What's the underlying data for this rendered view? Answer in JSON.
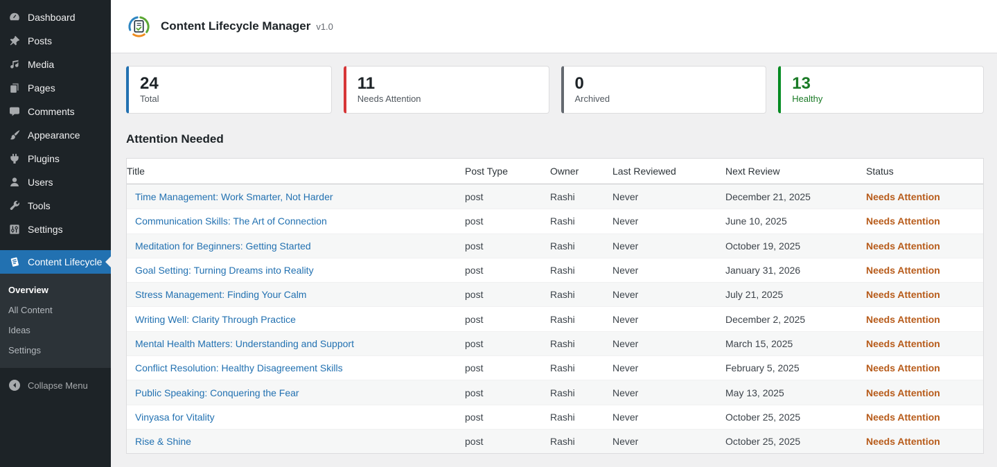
{
  "sidebar": {
    "items": [
      {
        "label": "Dashboard",
        "icon": "dashboard-icon"
      },
      {
        "label": "Posts",
        "icon": "pushpin-icon"
      },
      {
        "label": "Media",
        "icon": "media-icon"
      },
      {
        "label": "Pages",
        "icon": "pages-icon"
      },
      {
        "label": "Comments",
        "icon": "comments-icon"
      },
      {
        "label": "Appearance",
        "icon": "appearance-icon"
      },
      {
        "label": "Plugins",
        "icon": "plugins-icon"
      },
      {
        "label": "Users",
        "icon": "users-icon"
      },
      {
        "label": "Tools",
        "icon": "tools-icon"
      },
      {
        "label": "Settings",
        "icon": "settings-icon"
      }
    ],
    "active_item": {
      "label": "Content Lifecycle",
      "icon": "clipboard-icon"
    },
    "submenu": [
      {
        "label": "Overview",
        "current": true
      },
      {
        "label": "All Content",
        "current": false
      },
      {
        "label": "Ideas",
        "current": false
      },
      {
        "label": "Settings",
        "current": false
      }
    ],
    "collapse": {
      "label": "Collapse Menu",
      "icon": "collapse-arrow-icon"
    }
  },
  "header": {
    "title": "Content Lifecycle Manager",
    "version": "v1.0",
    "logo_icon": "lifecycle-logo-icon"
  },
  "stats": [
    {
      "value": "24",
      "label": "Total",
      "accent": "#2271b1",
      "value_color": "#1d2327"
    },
    {
      "value": "11",
      "label": "Needs Attention",
      "accent": "#d63638",
      "value_color": "#1d2327"
    },
    {
      "value": "0",
      "label": "Archived",
      "accent": "#646970",
      "value_color": "#1d2327"
    },
    {
      "value": "13",
      "label": "Healthy",
      "accent": "#008a20",
      "value_color": "#1a7a26",
      "label_color": "#1a7a26"
    }
  ],
  "section": {
    "title": "Attention Needed"
  },
  "table": {
    "columns": [
      "Title",
      "Post Type",
      "Owner",
      "Last Reviewed",
      "Next Review",
      "Status"
    ],
    "link_color": "#2271b1",
    "status_color": "#b75b1a",
    "rows": [
      {
        "title": "Time Management: Work Smarter, Not Harder",
        "post_type": "post",
        "owner": "Rashi",
        "last_reviewed": "Never",
        "next_review": "December 21, 2025",
        "status": "Needs Attention"
      },
      {
        "title": "Communication Skills: The Art of Connection",
        "post_type": "post",
        "owner": "Rashi",
        "last_reviewed": "Never",
        "next_review": "June 10, 2025",
        "status": "Needs Attention"
      },
      {
        "title": "Meditation for Beginners: Getting Started",
        "post_type": "post",
        "owner": "Rashi",
        "last_reviewed": "Never",
        "next_review": "October 19, 2025",
        "status": "Needs Attention"
      },
      {
        "title": "Goal Setting: Turning Dreams into Reality",
        "post_type": "post",
        "owner": "Rashi",
        "last_reviewed": "Never",
        "next_review": "January 31, 2026",
        "status": "Needs Attention"
      },
      {
        "title": "Stress Management: Finding Your Calm",
        "post_type": "post",
        "owner": "Rashi",
        "last_reviewed": "Never",
        "next_review": "July 21, 2025",
        "status": "Needs Attention"
      },
      {
        "title": "Writing Well: Clarity Through Practice",
        "post_type": "post",
        "owner": "Rashi",
        "last_reviewed": "Never",
        "next_review": "December 2, 2025",
        "status": "Needs Attention"
      },
      {
        "title": "Mental Health Matters: Understanding and Support",
        "post_type": "post",
        "owner": "Rashi",
        "last_reviewed": "Never",
        "next_review": "March 15, 2025",
        "status": "Needs Attention"
      },
      {
        "title": "Conflict Resolution: Healthy Disagreement Skills",
        "post_type": "post",
        "owner": "Rashi",
        "last_reviewed": "Never",
        "next_review": "February 5, 2025",
        "status": "Needs Attention"
      },
      {
        "title": "Public Speaking: Conquering the Fear",
        "post_type": "post",
        "owner": "Rashi",
        "last_reviewed": "Never",
        "next_review": "May 13, 2025",
        "status": "Needs Attention"
      },
      {
        "title": "Vinyasa for Vitality",
        "post_type": "post",
        "owner": "Rashi",
        "last_reviewed": "Never",
        "next_review": "October 25, 2025",
        "status": "Needs Attention"
      },
      {
        "title": "Rise & Shine",
        "post_type": "post",
        "owner": "Rashi",
        "last_reviewed": "Never",
        "next_review": "October 25, 2025",
        "status": "Needs Attention"
      }
    ]
  }
}
